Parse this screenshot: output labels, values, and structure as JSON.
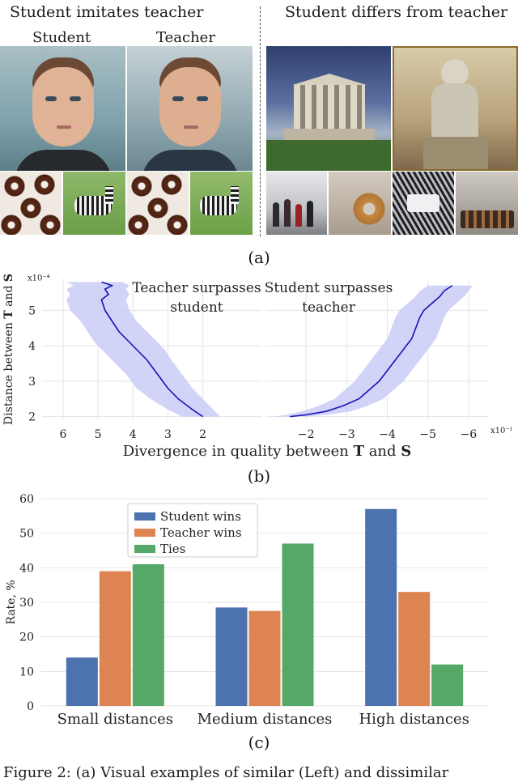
{
  "panel_a": {
    "left_title": "Student imitates teacher",
    "right_title": "Student differs from teacher",
    "student_label": "Student",
    "teacher_label": "Teacher",
    "caption": "(a)"
  },
  "panel_b": {
    "caption": "(b)",
    "chart_data": {
      "type": "line",
      "ylabel": "Distance between T and S",
      "ylabel_parts": [
        "Distance between ",
        "T",
        " and ",
        "S"
      ],
      "xlabel": "Divergence in quality between T and S",
      "xlabel_parts": [
        "Divergence in quality between ",
        "T",
        " and ",
        "S"
      ],
      "y_scale_label": "x10⁻⁴",
      "x_scale_label": "x10⁻¹",
      "ylim": [
        1.9,
        5.9
      ],
      "yticks": [
        "2",
        "3",
        "4",
        "5"
      ],
      "left": {
        "annotation": [
          "Teacher surpasses",
          "student"
        ],
        "xlim": [
          6.6,
          0.3
        ],
        "xticks": [
          "6",
          "5",
          "4",
          "3",
          "2"
        ],
        "series": {
          "x": [
            2.0,
            2.3,
            2.7,
            3.0,
            3.3,
            3.6,
            3.9,
            4.1,
            4.4,
            4.6,
            4.8,
            4.9,
            4.7,
            4.8,
            4.6,
            4.9
          ],
          "y": [
            2.0,
            2.2,
            2.5,
            2.8,
            3.2,
            3.6,
            3.9,
            4.1,
            4.4,
            4.7,
            5.0,
            5.3,
            5.45,
            5.6,
            5.7,
            5.8
          ],
          "band_low": [
            1.5,
            1.7,
            2.0,
            2.3,
            2.6,
            2.9,
            3.1,
            3.3,
            3.6,
            3.9,
            4.1,
            4.2,
            4.1,
            4.2,
            4.1,
            4.3
          ],
          "band_high": [
            2.6,
            3.0,
            3.5,
            3.9,
            4.2,
            4.6,
            4.9,
            5.1,
            5.3,
            5.5,
            5.8,
            5.9,
            5.8,
            5.9,
            5.7,
            5.9
          ]
        }
      },
      "right": {
        "annotation": [
          "Student surpasses",
          "teacher"
        ],
        "xlim": [
          -1.0,
          -6.5
        ],
        "xticks": [
          "−2",
          "−3",
          "−4",
          "−5",
          "−6"
        ],
        "series": {
          "x": [
            -1.6,
            -2.0,
            -2.5,
            -2.9,
            -3.3,
            -3.6,
            -3.8,
            -4.0,
            -4.2,
            -4.4,
            -4.6,
            -4.7,
            -4.8,
            -4.9,
            -5.1,
            -5.3,
            -5.4,
            -5.6
          ],
          "y": [
            2.0,
            2.05,
            2.15,
            2.3,
            2.5,
            2.8,
            3.0,
            3.3,
            3.6,
            3.9,
            4.2,
            4.5,
            4.8,
            5.0,
            5.2,
            5.4,
            5.55,
            5.7
          ],
          "band_low": [
            -1.2,
            -1.5,
            -1.9,
            -2.3,
            -2.7,
            -3.0,
            -3.2,
            -3.4,
            -3.6,
            -3.8,
            -4.0,
            -4.1,
            -4.2,
            -4.3,
            -4.5,
            -4.7,
            -4.8,
            -5.0
          ],
          "band_high": [
            -2.0,
            -2.5,
            -3.1,
            -3.5,
            -3.9,
            -4.2,
            -4.4,
            -4.6,
            -4.8,
            -5.0,
            -5.2,
            -5.3,
            -5.4,
            -5.5,
            -5.7,
            -5.9,
            -6.0,
            -6.1
          ]
        }
      },
      "colors": {
        "line": "#1414b8",
        "band": "#c9cdf6",
        "grid": "#e4e4e4"
      }
    }
  },
  "panel_c": {
    "caption": "(c)",
    "chart_data": {
      "type": "bar",
      "categories": [
        "Small distances",
        "Medium distances",
        "High distances"
      ],
      "series": [
        {
          "name": "Student wins",
          "values": [
            14,
            28.5,
            57
          ],
          "color": "#4c72b0"
        },
        {
          "name": "Teacher wins",
          "values": [
            39,
            27.5,
            33
          ],
          "color": "#dd8452"
        },
        {
          "name": "Ties",
          "values": [
            41,
            47,
            12
          ],
          "color": "#55a868"
        }
      ],
      "ylabel": "Rate, %",
      "ylim": [
        0,
        60
      ],
      "yticks": [
        "0",
        "10",
        "20",
        "30",
        "40",
        "50",
        "60"
      ],
      "legend": "top-left",
      "grid": true
    }
  },
  "figure_caption_fragment": "Figure 2: (a) Visual examples of similar (Left) and dissimilar"
}
